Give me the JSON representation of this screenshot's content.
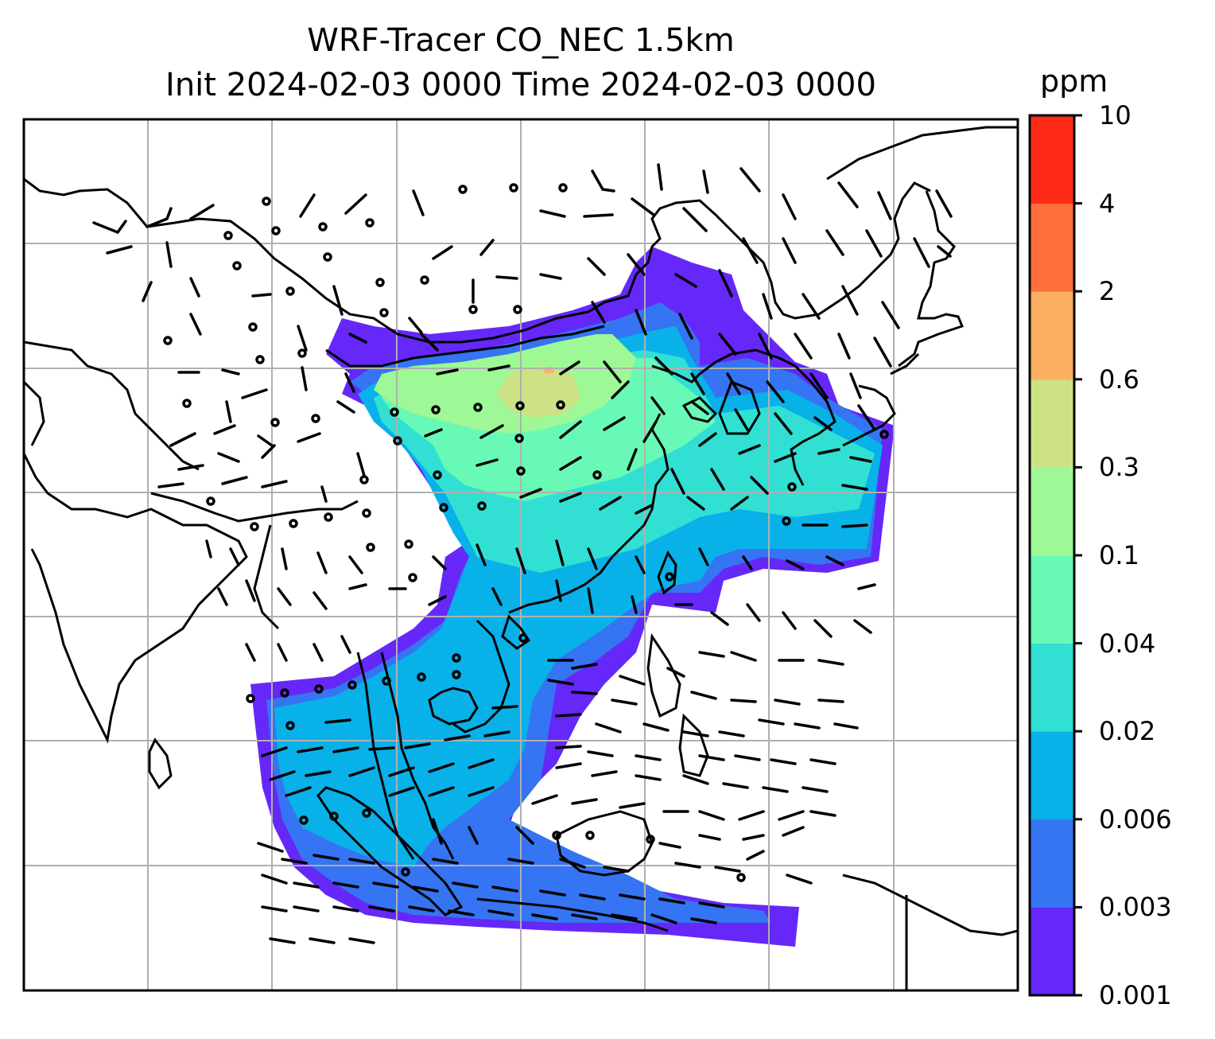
{
  "title": {
    "line1": "WRF-Tracer CO_NEC 1.5km",
    "line2": "Init 2024-02-03 0000 Time 2024-02-03 0000"
  },
  "colorbar": {
    "unit": "ppm",
    "levels": [
      "0.001",
      "0.003",
      "0.006",
      "0.02",
      "0.04",
      "0.1",
      "0.3",
      "0.6",
      "2",
      "4",
      "10"
    ],
    "colors": [
      "#6528f8",
      "#3574f2",
      "#09b1e9",
      "#31e0d3",
      "#69f9b6",
      "#9ef895",
      "#cde285",
      "#fdaf61",
      "#ff6f3b",
      "#ff2b18"
    ]
  },
  "map": {
    "gridlines": true,
    "wind_barbs": true,
    "tracer": "CO_NEC"
  }
}
